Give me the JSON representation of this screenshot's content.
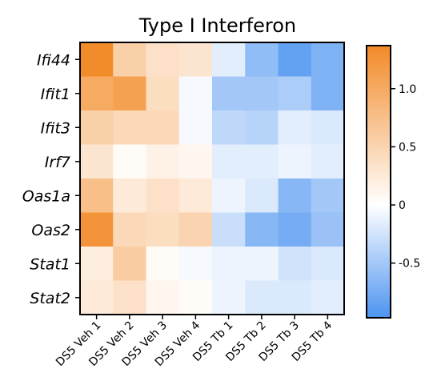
{
  "chart_data": {
    "type": "heatmap",
    "title": "Type I Interferon",
    "rows": [
      "Ifi44",
      "Ifit1",
      "Ifit3",
      "Irf7",
      "Oas1a",
      "Oas2",
      "Stat1",
      "Stat2"
    ],
    "columns": [
      "DS5 Veh 1",
      "DS5 Veh 2",
      "DS5 Veh 3",
      "DS5 Veh 4",
      "DS5 Tb 1",
      "DS5 Tb 2",
      "DS5 Tb 3",
      "DS5 Tb 4"
    ],
    "values": [
      [
        1.35,
        0.55,
        0.35,
        0.3,
        -0.15,
        -0.6,
        -0.85,
        -0.7
      ],
      [
        1.0,
        1.1,
        0.4,
        -0.05,
        -0.5,
        -0.5,
        -0.45,
        -0.7
      ],
      [
        0.55,
        0.45,
        0.45,
        -0.05,
        -0.35,
        -0.4,
        -0.15,
        -0.2
      ],
      [
        0.3,
        0.05,
        0.15,
        0.1,
        -0.15,
        -0.15,
        -0.1,
        -0.15
      ],
      [
        0.75,
        0.25,
        0.35,
        0.25,
        -0.1,
        -0.2,
        -0.65,
        -0.5
      ],
      [
        1.25,
        0.45,
        0.4,
        0.5,
        -0.3,
        -0.65,
        -0.75,
        -0.55
      ],
      [
        0.2,
        0.6,
        0.05,
        -0.05,
        -0.1,
        -0.1,
        -0.25,
        -0.2
      ],
      [
        0.25,
        0.35,
        0.1,
        0.05,
        -0.1,
        -0.2,
        -0.2,
        -0.15
      ]
    ],
    "colorbar": {
      "min": -0.97,
      "max": 1.37,
      "ticks": [
        1.0,
        0.5,
        0,
        -0.5
      ],
      "tick_labels": [
        "1.0",
        "0.5",
        "0",
        "-0.5"
      ]
    },
    "colors": {
      "high": "#f28a28",
      "mid": "#ffffff",
      "low": "#4d94f0"
    }
  }
}
